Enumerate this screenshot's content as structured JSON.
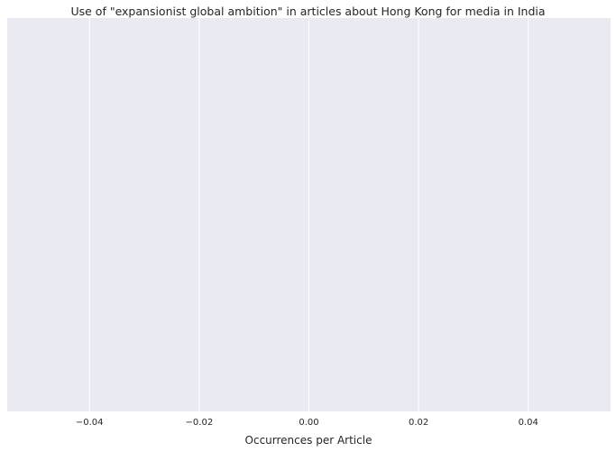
{
  "chart_data": {
    "type": "bar",
    "orientation": "horizontal",
    "title": "Use of \"expansionist global ambition\" in articles about Hong Kong for media in India",
    "xlabel": "Occurrences per Article",
    "ylabel": "",
    "categories": [],
    "values": [],
    "xlim": [
      -0.055,
      0.055
    ],
    "xticks": [
      -0.04,
      -0.02,
      0.0,
      0.02,
      0.04
    ],
    "xtick_labels": [
      "−0.04",
      "−0.02",
      "0.00",
      "0.02",
      "0.04"
    ],
    "grid": true,
    "legend": "none",
    "colors": {
      "plot_background": "#eaeaf2",
      "grid": "#ffffff",
      "text": "#262626"
    }
  }
}
